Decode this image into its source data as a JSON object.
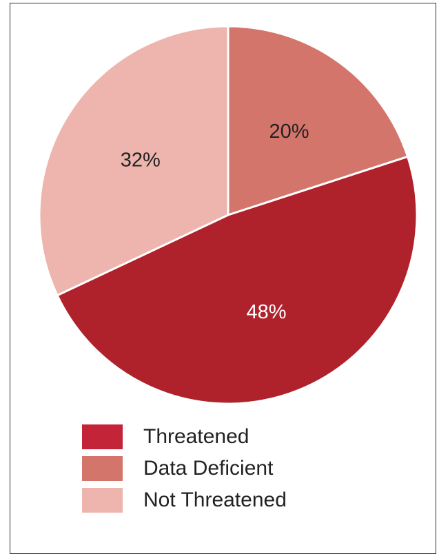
{
  "chart_data": {
    "type": "pie",
    "title": "",
    "slices": [
      {
        "name": "Threatened",
        "value": 48,
        "label": "48%",
        "color": "#b0222b",
        "label_color": "#ffffff"
      },
      {
        "name": "Data Deficient",
        "value": 20,
        "label": "20%",
        "color": "#d4756c",
        "label_color": "#222222"
      },
      {
        "name": "Not Threatened",
        "value": 32,
        "label": "32%",
        "color": "#edb5ad",
        "label_color": "#222222"
      }
    ],
    "start_angle_deg": 0,
    "direction": "clockwise",
    "draw_order": [
      "Data Deficient",
      "Threatened",
      "Not Threatened"
    ],
    "legend": {
      "position": "bottom-left",
      "items": [
        {
          "label": "Threatened",
          "color": "#c32437"
        },
        {
          "label": "Data Deficient",
          "color": "#d4756c"
        },
        {
          "label": "Not Threatened",
          "color": "#edb5ad"
        }
      ]
    }
  }
}
